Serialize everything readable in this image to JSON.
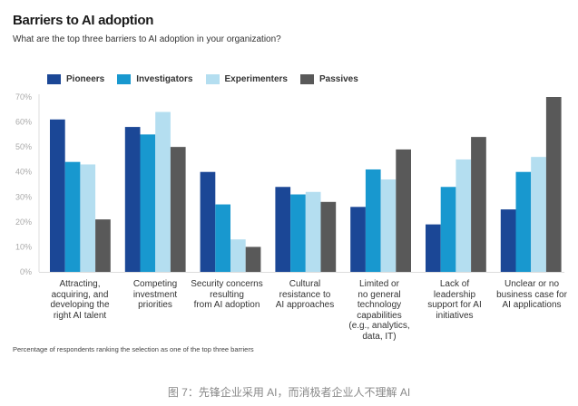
{
  "chart_data": {
    "type": "bar",
    "title": "Barriers to AI adoption",
    "subtitle": "What are the top three barriers to AI adoption in your organization?",
    "xlabel": "",
    "ylabel": "",
    "ylim": [
      0,
      70
    ],
    "yticks": [
      "0%",
      "10%",
      "20%",
      "30%",
      "40%",
      "50%",
      "60%",
      "70%"
    ],
    "legend_position": "top",
    "categories": [
      "Attracting,\nacquiring, and\ndeveloping the\nright AI talent",
      "Competing\ninvestment\npriorities",
      "Security concerns\nresulting\nfrom AI adoption",
      "Cultural\nresistance to\nAI approaches",
      "Limited or\nno general\ntechnology\ncapabilities\n(e.g., analytics,\ndata, IT)",
      "Lack of\nleadership\nsupport for AI\ninitiatives",
      "Unclear or no\nbusiness case for\nAI applications"
    ],
    "series": [
      {
        "name": "Pioneers",
        "color": "#1b4796",
        "values": [
          61,
          58,
          40,
          34,
          26,
          19,
          25
        ]
      },
      {
        "name": "Investigators",
        "color": "#1898cf",
        "values": [
          44,
          55,
          27,
          31,
          41,
          34,
          40
        ]
      },
      {
        "name": "Experimenters",
        "color": "#b4def0",
        "values": [
          43,
          64,
          13,
          32,
          37,
          45,
          46
        ]
      },
      {
        "name": "Passives",
        "color": "#595959",
        "values": [
          21,
          50,
          10,
          28,
          49,
          54,
          70
        ]
      }
    ],
    "footnote": "Percentage of respondents ranking the selection as one of the top three barriers"
  },
  "caption": "图 7：先锋企业采用 AI，而消极者企业人不理解 AI"
}
